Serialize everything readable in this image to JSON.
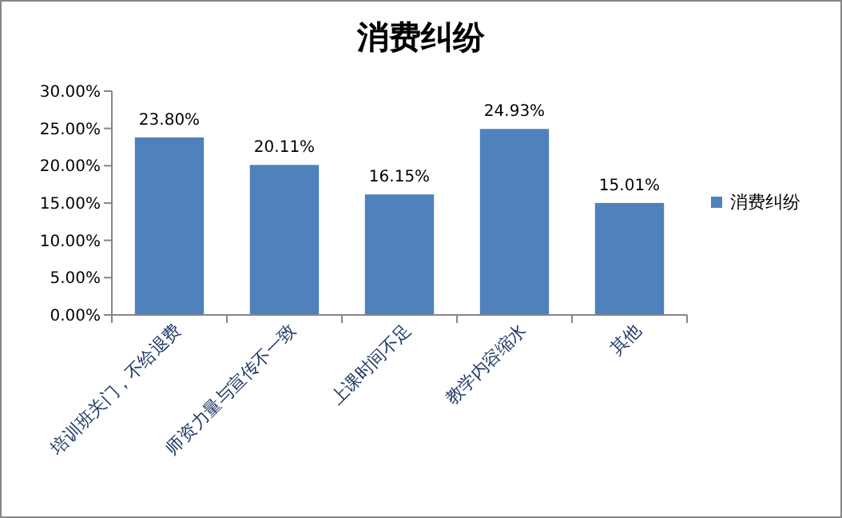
{
  "chart_data": {
    "type": "bar",
    "title": "消费纠纷",
    "categories": [
      "培训班关门，不给退费",
      "师资力量与宣传不一致",
      "上课时间不足",
      "教学内容缩水",
      "其他"
    ],
    "series": [
      {
        "name": "消费纠纷",
        "color": "#4f81bd",
        "values": [
          23.8,
          20.11,
          16.15,
          24.93,
          15.01
        ],
        "value_labels": [
          "23.80%",
          "20.11%",
          "16.15%",
          "24.93%",
          "15.01%"
        ]
      }
    ],
    "ylim": [
      0,
      30
    ],
    "yticks": [
      {
        "value": 0,
        "label": "0.00%"
      },
      {
        "value": 5,
        "label": "5.00%"
      },
      {
        "value": 10,
        "label": "10.00%"
      },
      {
        "value": 15,
        "label": "15.00%"
      },
      {
        "value": 20,
        "label": "20.00%"
      },
      {
        "value": 25,
        "label": "25.00%"
      },
      {
        "value": 30,
        "label": "30.00%"
      }
    ],
    "grid": false,
    "legend": "right"
  }
}
